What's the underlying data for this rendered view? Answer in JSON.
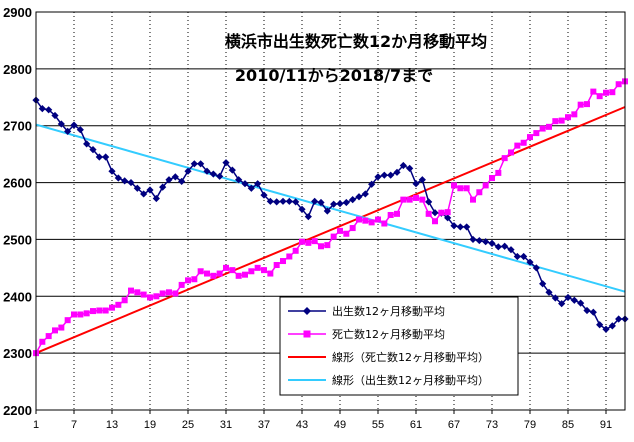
{
  "chart_data": {
    "type": "line",
    "title": "横浜市出生数死亡数12か月移動平均",
    "subtitle": "2010/11から2018/7まで",
    "xlabel": "",
    "ylabel": "",
    "ylim": [
      2200,
      2900
    ],
    "yticks": [
      2200,
      2300,
      2400,
      2500,
      2600,
      2700,
      2800,
      2900
    ],
    "xlim": [
      1,
      94
    ],
    "xticks": [
      1,
      7,
      13,
      19,
      25,
      31,
      37,
      43,
      49,
      55,
      61,
      67,
      73,
      79,
      85,
      91
    ],
    "grid": true,
    "legend_position": "bottom-center",
    "series": [
      {
        "name": "出生数12ヶ月移動平均",
        "color": "#000080",
        "marker": "diamond",
        "x": [
          1,
          2,
          3,
          4,
          5,
          6,
          7,
          8,
          9,
          10,
          11,
          12,
          13,
          14,
          15,
          16,
          17,
          18,
          19,
          20,
          21,
          22,
          23,
          24,
          25,
          26,
          27,
          28,
          29,
          30,
          31,
          32,
          33,
          34,
          35,
          36,
          37,
          38,
          39,
          40,
          41,
          42,
          43,
          44,
          45,
          46,
          47,
          48,
          49,
          50,
          51,
          52,
          53,
          54,
          55,
          56,
          57,
          58,
          59,
          60,
          61,
          62,
          63,
          64,
          65,
          66,
          67,
          68,
          69,
          70,
          71,
          72,
          73,
          74,
          75,
          76,
          77,
          78,
          79,
          80,
          81,
          82,
          83,
          84,
          85,
          86,
          87,
          88,
          89,
          90,
          91,
          92,
          93,
          94
        ],
        "values": [
          2745,
          2730,
          2728,
          2718,
          2703,
          2690,
          2701,
          2693,
          2668,
          2658,
          2645,
          2645,
          2620,
          2608,
          2603,
          2600,
          2590,
          2580,
          2587,
          2572,
          2592,
          2605,
          2610,
          2602,
          2620,
          2633,
          2633,
          2620,
          2615,
          2611,
          2635,
          2622,
          2605,
          2598,
          2590,
          2598,
          2578,
          2567,
          2566,
          2567,
          2567,
          2566,
          2553,
          2540,
          2567,
          2565,
          2550,
          2562,
          2563,
          2565,
          2570,
          2575,
          2580,
          2597,
          2610,
          2613,
          2613,
          2618,
          2630,
          2625,
          2598,
          2605,
          2566,
          2547,
          2546,
          2538,
          2524,
          2522,
          2522,
          2500,
          2498,
          2496,
          2493,
          2487,
          2488,
          2482,
          2470,
          2470,
          2460,
          2450,
          2422,
          2407,
          2397,
          2387,
          2398,
          2393,
          2388,
          2375,
          2372,
          2350,
          2342,
          2348,
          2360,
          2360
        ]
      },
      {
        "name": "死亡数12ヶ月移動平均",
        "color": "#ff00ff",
        "marker": "square",
        "x": [
          1,
          2,
          3,
          4,
          5,
          6,
          7,
          8,
          9,
          10,
          11,
          12,
          13,
          14,
          15,
          16,
          17,
          18,
          19,
          20,
          21,
          22,
          23,
          24,
          25,
          26,
          27,
          28,
          29,
          30,
          31,
          32,
          33,
          34,
          35,
          36,
          37,
          38,
          39,
          40,
          41,
          42,
          43,
          44,
          45,
          46,
          47,
          48,
          49,
          50,
          51,
          52,
          53,
          54,
          55,
          56,
          57,
          58,
          59,
          60,
          61,
          62,
          63,
          64,
          65,
          66,
          67,
          68,
          69,
          70,
          71,
          72,
          73,
          74,
          75,
          76,
          77,
          78,
          79,
          80,
          81,
          82,
          83,
          84,
          85,
          86,
          87,
          88,
          89,
          90,
          91,
          92,
          93,
          94
        ],
        "values": [
          2300,
          2320,
          2330,
          2340,
          2345,
          2358,
          2368,
          2368,
          2370,
          2374,
          2375,
          2375,
          2380,
          2385,
          2393,
          2410,
          2407,
          2403,
          2398,
          2400,
          2405,
          2407,
          2405,
          2420,
          2428,
          2430,
          2444,
          2440,
          2436,
          2440,
          2450,
          2446,
          2436,
          2438,
          2444,
          2450,
          2446,
          2440,
          2455,
          2462,
          2470,
          2480,
          2496,
          2494,
          2497,
          2488,
          2490,
          2505,
          2515,
          2510,
          2520,
          2535,
          2533,
          2530,
          2535,
          2528,
          2543,
          2545,
          2570,
          2570,
          2573,
          2570,
          2545,
          2532,
          2547,
          2548,
          2595,
          2590,
          2590,
          2570,
          2583,
          2595,
          2608,
          2617,
          2643,
          2653,
          2665,
          2670,
          2680,
          2687,
          2695,
          2698,
          2708,
          2709,
          2715,
          2720,
          2737,
          2738,
          2760,
          2752,
          2758,
          2759,
          2773,
          2778
        ]
      },
      {
        "name": "線形（死亡数12ヶ月移動平均）",
        "color": "#ff0000",
        "marker": "none",
        "x": [
          1,
          94
        ],
        "values": [
          2300,
          2733
        ]
      },
      {
        "name": "線形（出生数12ヶ月移動平均）",
        "color": "#33ccff",
        "marker": "none",
        "x": [
          1,
          94
        ],
        "values": [
          2702,
          2408
        ]
      }
    ]
  }
}
